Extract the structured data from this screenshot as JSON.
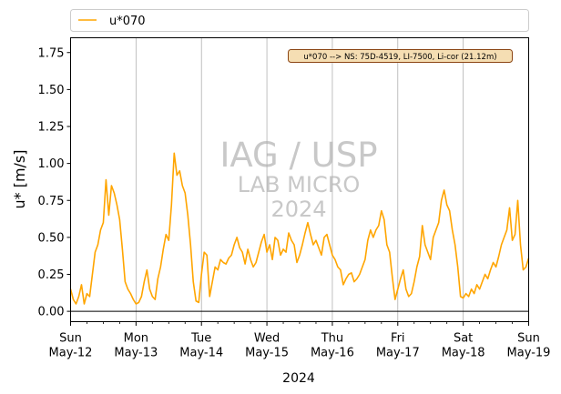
{
  "chart_data": {
    "type": "line",
    "xlabel": "2024",
    "ylabel": "u* [m/s]",
    "xlim": [
      "2024-05-12T00:00",
      "2024-05-19T00:00"
    ],
    "ylim": [
      -0.07,
      1.85
    ],
    "yticks": [
      0.0,
      0.25,
      0.5,
      0.75,
      1.0,
      1.25,
      1.5,
      1.75
    ],
    "ytick_labels": [
      "0.00",
      "0.25",
      "0.50",
      "0.75",
      "1.00",
      "1.25",
      "1.50",
      "1.75"
    ],
    "xticks": [
      {
        "t": "2024-05-12T00:00",
        "day": "Sun",
        "date": "May-12"
      },
      {
        "t": "2024-05-13T00:00",
        "day": "Mon",
        "date": "May-13"
      },
      {
        "t": "2024-05-14T00:00",
        "day": "Tue",
        "date": "May-14"
      },
      {
        "t": "2024-05-15T00:00",
        "day": "Wed",
        "date": "May-15"
      },
      {
        "t": "2024-05-16T00:00",
        "day": "Thu",
        "date": "May-16"
      },
      {
        "t": "2024-05-17T00:00",
        "day": "Fri",
        "date": "May-17"
      },
      {
        "t": "2024-05-18T00:00",
        "day": "Sat",
        "date": "May-18"
      },
      {
        "t": "2024-05-19T00:00",
        "day": "Sun",
        "date": "May-19"
      }
    ],
    "grid": "vertical",
    "zero_line": true,
    "legend_position": "top",
    "annotation": "u*070 --> NS: 75D-4519, LI-7500, Li-cor (21.12m)",
    "watermark": {
      "line1": "IAG / USP",
      "line2": "LAB MICRO",
      "line3": "2024"
    },
    "colors": {
      "series": "#ffa500",
      "grid": "#b0b0b0",
      "watermark": "#c8c8c8",
      "annotation_bg": "#f5deb3",
      "annotation_border": "#8b4513"
    },
    "series": [
      {
        "name": "u*070",
        "x": [
          "2024-05-12T00:00",
          "2024-05-12T01:00",
          "2024-05-12T02:00",
          "2024-05-12T03:00",
          "2024-05-12T04:00",
          "2024-05-12T05:00",
          "2024-05-12T06:00",
          "2024-05-12T07:00",
          "2024-05-12T08:00",
          "2024-05-12T09:00",
          "2024-05-12T10:00",
          "2024-05-12T11:00",
          "2024-05-12T12:00",
          "2024-05-12T13:00",
          "2024-05-12T14:00",
          "2024-05-12T15:00",
          "2024-05-12T16:00",
          "2024-05-12T17:00",
          "2024-05-12T18:00",
          "2024-05-12T19:00",
          "2024-05-12T20:00",
          "2024-05-12T21:00",
          "2024-05-12T22:00",
          "2024-05-12T23:00",
          "2024-05-13T00:00",
          "2024-05-13T01:00",
          "2024-05-13T02:00",
          "2024-05-13T03:00",
          "2024-05-13T04:00",
          "2024-05-13T05:00",
          "2024-05-13T06:00",
          "2024-05-13T07:00",
          "2024-05-13T08:00",
          "2024-05-13T09:00",
          "2024-05-13T10:00",
          "2024-05-13T11:00",
          "2024-05-13T12:00",
          "2024-05-13T13:00",
          "2024-05-13T14:00",
          "2024-05-13T15:00",
          "2024-05-13T16:00",
          "2024-05-13T17:00",
          "2024-05-13T18:00",
          "2024-05-13T19:00",
          "2024-05-13T20:00",
          "2024-05-13T21:00",
          "2024-05-13T22:00",
          "2024-05-13T23:00",
          "2024-05-14T00:00",
          "2024-05-14T01:00",
          "2024-05-14T02:00",
          "2024-05-14T03:00",
          "2024-05-14T04:00",
          "2024-05-14T05:00",
          "2024-05-14T06:00",
          "2024-05-14T07:00",
          "2024-05-14T08:00",
          "2024-05-14T09:00",
          "2024-05-14T10:00",
          "2024-05-14T11:00",
          "2024-05-14T12:00",
          "2024-05-14T13:00",
          "2024-05-14T14:00",
          "2024-05-14T15:00",
          "2024-05-14T16:00",
          "2024-05-14T17:00",
          "2024-05-14T18:00",
          "2024-05-14T19:00",
          "2024-05-14T20:00",
          "2024-05-14T21:00",
          "2024-05-14T22:00",
          "2024-05-14T23:00",
          "2024-05-15T00:00",
          "2024-05-15T01:00",
          "2024-05-15T02:00",
          "2024-05-15T03:00",
          "2024-05-15T04:00",
          "2024-05-15T05:00",
          "2024-05-15T06:00",
          "2024-05-15T07:00",
          "2024-05-15T08:00",
          "2024-05-15T09:00",
          "2024-05-15T10:00",
          "2024-05-15T11:00",
          "2024-05-15T12:00",
          "2024-05-15T13:00",
          "2024-05-15T14:00",
          "2024-05-15T15:00",
          "2024-05-15T16:00",
          "2024-05-15T17:00",
          "2024-05-15T18:00",
          "2024-05-15T19:00",
          "2024-05-15T20:00",
          "2024-05-15T21:00",
          "2024-05-15T22:00",
          "2024-05-15T23:00",
          "2024-05-16T00:00",
          "2024-05-16T01:00",
          "2024-05-16T02:00",
          "2024-05-16T03:00",
          "2024-05-16T04:00",
          "2024-05-16T05:00",
          "2024-05-16T06:00",
          "2024-05-16T07:00",
          "2024-05-16T08:00",
          "2024-05-16T09:00",
          "2024-05-16T10:00",
          "2024-05-16T11:00",
          "2024-05-16T12:00",
          "2024-05-16T13:00",
          "2024-05-16T14:00",
          "2024-05-16T15:00",
          "2024-05-16T16:00",
          "2024-05-16T17:00",
          "2024-05-16T18:00",
          "2024-05-16T19:00",
          "2024-05-16T20:00",
          "2024-05-16T21:00",
          "2024-05-16T22:00",
          "2024-05-16T23:00",
          "2024-05-17T00:00",
          "2024-05-17T01:00",
          "2024-05-17T02:00",
          "2024-05-17T03:00",
          "2024-05-17T04:00",
          "2024-05-17T05:00",
          "2024-05-17T06:00",
          "2024-05-17T07:00",
          "2024-05-17T08:00",
          "2024-05-17T09:00",
          "2024-05-17T10:00",
          "2024-05-17T11:00",
          "2024-05-17T12:00",
          "2024-05-17T13:00",
          "2024-05-17T14:00",
          "2024-05-17T15:00",
          "2024-05-17T16:00",
          "2024-05-17T17:00",
          "2024-05-17T18:00",
          "2024-05-17T19:00",
          "2024-05-17T20:00",
          "2024-05-17T21:00",
          "2024-05-17T22:00",
          "2024-05-17T23:00",
          "2024-05-18T00:00",
          "2024-05-18T01:00",
          "2024-05-18T02:00",
          "2024-05-18T03:00",
          "2024-05-18T04:00",
          "2024-05-18T05:00",
          "2024-05-18T06:00",
          "2024-05-18T07:00",
          "2024-05-18T08:00",
          "2024-05-18T09:00",
          "2024-05-18T10:00",
          "2024-05-18T11:00",
          "2024-05-18T12:00",
          "2024-05-18T13:00",
          "2024-05-18T14:00",
          "2024-05-18T15:00",
          "2024-05-18T16:00",
          "2024-05-18T17:00",
          "2024-05-18T18:00",
          "2024-05-18T19:00",
          "2024-05-18T20:00",
          "2024-05-18T21:00",
          "2024-05-18T22:00",
          "2024-05-18T23:00",
          "2024-05-19T00:00"
        ],
        "y": [
          0.15,
          0.08,
          0.05,
          0.1,
          0.18,
          0.05,
          0.12,
          0.1,
          0.25,
          0.4,
          0.45,
          0.55,
          0.6,
          0.89,
          0.65,
          0.85,
          0.8,
          0.72,
          0.62,
          0.42,
          0.2,
          0.15,
          0.12,
          0.08,
          0.05,
          0.06,
          0.1,
          0.2,
          0.28,
          0.15,
          0.1,
          0.08,
          0.22,
          0.3,
          0.42,
          0.52,
          0.48,
          0.72,
          1.07,
          0.92,
          0.95,
          0.85,
          0.8,
          0.65,
          0.45,
          0.2,
          0.07,
          0.06,
          0.25,
          0.4,
          0.38,
          0.1,
          0.2,
          0.3,
          0.28,
          0.35,
          0.33,
          0.32,
          0.36,
          0.38,
          0.45,
          0.5,
          0.43,
          0.4,
          0.32,
          0.42,
          0.35,
          0.3,
          0.33,
          0.4,
          0.47,
          0.52,
          0.4,
          0.45,
          0.35,
          0.5,
          0.48,
          0.38,
          0.42,
          0.4,
          0.53,
          0.48,
          0.45,
          0.33,
          0.38,
          0.45,
          0.53,
          0.6,
          0.52,
          0.45,
          0.48,
          0.43,
          0.38,
          0.5,
          0.52,
          0.45,
          0.38,
          0.35,
          0.3,
          0.28,
          0.18,
          0.22,
          0.25,
          0.26,
          0.2,
          0.22,
          0.25,
          0.3,
          0.35,
          0.48,
          0.55,
          0.5,
          0.55,
          0.58,
          0.68,
          0.62,
          0.45,
          0.4,
          0.23,
          0.08,
          0.15,
          0.22,
          0.28,
          0.15,
          0.1,
          0.12,
          0.2,
          0.3,
          0.37,
          0.58,
          0.45,
          0.4,
          0.35,
          0.5,
          0.55,
          0.6,
          0.75,
          0.82,
          0.72,
          0.68,
          0.55,
          0.45,
          0.3,
          0.1,
          0.09,
          0.12,
          0.1,
          0.15,
          0.12,
          0.18,
          0.15,
          0.2,
          0.25,
          0.22,
          0.28,
          0.33,
          0.3,
          0.37,
          0.45,
          0.5,
          0.55,
          0.7,
          0.48,
          0.52,
          0.75,
          0.45,
          0.28,
          0.3,
          0.36
        ]
      }
    ]
  }
}
